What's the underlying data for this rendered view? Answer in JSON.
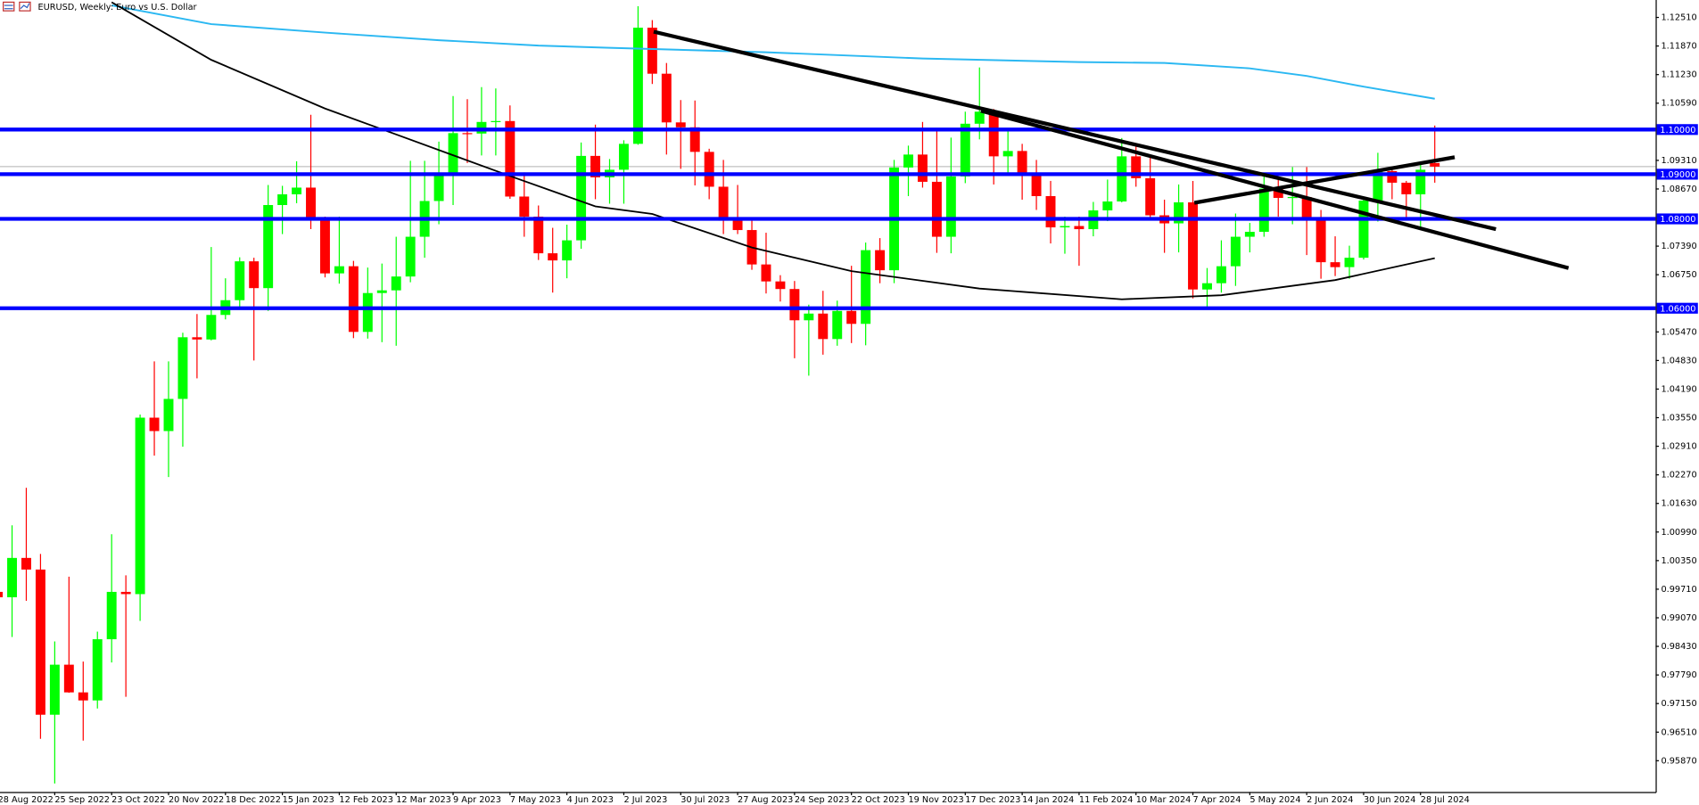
{
  "chart_data": {
    "type": "candlestick",
    "title": "EURUSD, Weekly: Euro vs U.S. Dollar",
    "categories": [
      "28 Aug 2022",
      null,
      null,
      null,
      "25 Sep 2022",
      null,
      null,
      null,
      "23 Oct 2022",
      null,
      null,
      null,
      "20 Nov 2022",
      null,
      null,
      null,
      "18 Dec 2022",
      null,
      null,
      null,
      "15 Jan 2023",
      null,
      null,
      null,
      "12 Feb 2023",
      null,
      null,
      null,
      "12 Mar 2023",
      null,
      null,
      null,
      "9 Apr 2023",
      null,
      null,
      null,
      "7 May 2023",
      null,
      null,
      null,
      "4 Jun 2023",
      null,
      null,
      null,
      "2 Jul 2023",
      null,
      null,
      null,
      "30 Jul 2023",
      null,
      null,
      null,
      "27 Aug 2023",
      null,
      null,
      null,
      "24 Sep 2023",
      null,
      null,
      null,
      "22 Oct 2023",
      null,
      null,
      null,
      "19 Nov 2023",
      null,
      null,
      null,
      "17 Dec 2023",
      null,
      null,
      null,
      "14 Jan 2024",
      null,
      null,
      null,
      "11 Feb 2024",
      null,
      null,
      null,
      "10 Mar 2024",
      null,
      null,
      null,
      "7 Apr 2024",
      null,
      null,
      null,
      "5 May 2024",
      null,
      null,
      null,
      "2 Jun 2024",
      null,
      null,
      null,
      "30 Jun 2024",
      null,
      null,
      null,
      "28 Jul 2024",
      null
    ],
    "open": [
      0.9965,
      0.9953,
      1.0041,
      1.0015,
      0.969,
      0.9802,
      0.974,
      0.9722,
      0.9859,
      0.9965,
      0.996,
      1.0355,
      1.0325,
      1.0397,
      1.0535,
      1.053,
      1.0585,
      1.0618,
      1.0705,
      1.0645,
      1.0831,
      1.0855,
      1.087,
      1.0797,
      1.0678,
      1.0694,
      1.0547,
      1.0634,
      1.064,
      1.0671,
      1.076,
      1.084,
      1.0901,
      1.0992,
      1.0991,
      1.1017,
      1.1019,
      1.085,
      1.0805,
      1.0723,
      1.0707,
      1.0752,
      1.0941,
      1.0893,
      1.091,
      1.0968,
      1.1228,
      1.1125,
      1.1016,
      1.1005,
      1.095,
      1.0872,
      1.0796,
      1.0775,
      1.0698,
      1.066,
      1.0643,
      1.0573,
      1.0588,
      1.0531,
      1.0594,
      1.0565,
      1.073,
      1.0685,
      1.0915,
      1.0944,
      1.0883,
      1.076,
      1.0895,
      1.1013,
      1.104,
      1.094,
      1.0952,
      1.0897,
      1.0851,
      1.0781,
      1.0784,
      1.0777,
      1.0819,
      1.0839,
      1.094,
      1.0891,
      1.0808,
      1.079,
      1.0837,
      1.0642,
      1.0656,
      1.0694,
      1.076,
      1.0771,
      1.0868,
      1.0847,
      1.0849,
      1.0801,
      1.0703,
      1.0692,
      1.0713,
      1.0841,
      1.0907,
      1.0881,
      1.0855,
      1.0925
    ],
    "high": [
      1.0079,
      1.0114,
      1.0198,
      1.005,
      0.9854,
      0.9999,
      0.9809,
      0.9876,
      1.0094,
      1.0002,
      1.0362,
      1.0481,
      1.0481,
      1.0545,
      1.0587,
      1.0737,
      1.0667,
      1.0714,
      1.0713,
      1.0876,
      1.0874,
      1.0929,
      1.1033,
      1.0805,
      1.0805,
      1.0706,
      1.0691,
      1.07,
      1.076,
      1.093,
      1.093,
      1.0973,
      1.1075,
      1.1068,
      1.1095,
      1.1092,
      1.1054,
      1.0904,
      1.083,
      1.078,
      1.0787,
      1.0971,
      1.1011,
      1.0934,
      1.0976,
      1.1276,
      1.1245,
      1.1149,
      1.1066,
      1.1065,
      1.0957,
      1.0932,
      1.0876,
      1.08,
      1.0769,
      1.0674,
      1.0661,
      1.0608,
      1.0639,
      1.0617,
      1.0695,
      1.0747,
      1.0757,
      1.0932,
      1.0964,
      1.1017,
      1.0996,
      1.0982,
      1.104,
      1.1139,
      1.1046,
      1.0998,
      1.0968,
      1.0932,
      1.0885,
      1.0805,
      1.0805,
      1.0838,
      1.0888,
      1.0981,
      1.0964,
      1.0942,
      1.0843,
      1.0877,
      1.0885,
      1.069,
      1.0752,
      1.0812,
      1.0791,
      1.0895,
      1.0895,
      1.0916,
      1.0916,
      1.082,
      1.0761,
      1.074,
      1.0844,
      1.0948,
      1.091,
      1.0885,
      1.0926,
      1.1009
    ],
    "low": [
      0.991,
      0.9864,
      0.9945,
      0.9636,
      0.9536,
      0.9739,
      0.9632,
      0.9704,
      0.9807,
      0.973,
      0.99,
      1.027,
      1.0222,
      1.029,
      1.0443,
      1.0528,
      1.0575,
      1.0601,
      1.0483,
      1.0594,
      1.0766,
      1.0835,
      1.0777,
      1.0669,
      1.0655,
      1.0533,
      1.0532,
      1.0524,
      1.0516,
      1.0658,
      1.0713,
      1.0788,
      1.0831,
      1.0925,
      1.0942,
      1.0942,
      1.0845,
      1.076,
      1.0708,
      1.0635,
      1.0667,
      1.0733,
      1.0844,
      1.0834,
      1.0834,
      1.0966,
      1.1102,
      1.0944,
      1.0912,
      1.0875,
      1.0844,
      1.0766,
      1.0766,
      1.0686,
      1.0633,
      1.0615,
      1.0488,
      1.0449,
      1.0496,
      1.0516,
      1.0522,
      1.0517,
      1.0656,
      1.0656,
      1.0851,
      1.087,
      1.0724,
      1.0723,
      1.088,
      1.0978,
      1.0877,
      1.0902,
      1.0843,
      1.082,
      1.0745,
      1.0722,
      1.0695,
      1.0761,
      1.0795,
      1.0837,
      1.0872,
      1.0802,
      1.0724,
      1.0725,
      1.0622,
      1.0601,
      1.0635,
      1.065,
      1.0725,
      1.076,
      1.0805,
      1.0788,
      1.0719,
      1.0666,
      1.0672,
      1.0666,
      1.0709,
      1.0794,
      1.0844,
      1.08,
      1.0777,
      1.0881
    ],
    "close": [
      0.9953,
      1.0041,
      1.0015,
      0.969,
      0.9802,
      0.974,
      0.9722,
      0.9859,
      0.9965,
      0.996,
      1.0355,
      1.0325,
      1.0397,
      1.0535,
      1.053,
      1.0585,
      1.0618,
      1.0705,
      1.0645,
      1.0831,
      1.0855,
      1.087,
      1.0797,
      1.0678,
      1.0694,
      1.0547,
      1.0634,
      1.064,
      1.0671,
      1.076,
      1.084,
      1.0901,
      1.0992,
      1.0991,
      1.1017,
      1.1019,
      1.085,
      1.0805,
      1.0723,
      1.0707,
      1.0752,
      1.0941,
      1.0893,
      1.091,
      1.0968,
      1.1228,
      1.1125,
      1.1016,
      1.1005,
      1.095,
      1.0872,
      1.0796,
      1.0775,
      1.0698,
      1.066,
      1.0643,
      1.0573,
      1.0588,
      1.0531,
      1.0594,
      1.0565,
      1.073,
      1.0685,
      1.0915,
      1.0944,
      1.0883,
      1.076,
      1.0895,
      1.1013,
      1.104,
      1.094,
      1.0952,
      1.0897,
      1.0851,
      1.0781,
      1.0784,
      1.0777,
      1.0819,
      1.0839,
      1.094,
      1.0891,
      1.0808,
      1.079,
      1.0837,
      1.0642,
      1.0656,
      1.0694,
      1.076,
      1.0771,
      1.0868,
      1.0847,
      1.0849,
      1.0801,
      1.0703,
      1.0692,
      1.0713,
      1.0841,
      1.0907,
      1.0881,
      1.0855,
      1.091,
      1.0917
    ],
    "up_color": "#00ff00",
    "down_color": "#ff0000",
    "ylim": [
      0.9517,
      1.129
    ],
    "yticks": [
      {
        "value": 1.1251,
        "label": "1.12510"
      },
      {
        "value": 1.1187,
        "label": "1.11870"
      },
      {
        "value": 1.1123,
        "label": "1.11230"
      },
      {
        "value": 1.1059,
        "label": "1.10590"
      },
      {
        "value": 1.0931,
        "label": "1.09310"
      },
      {
        "value": 1.0867,
        "label": "1.08670"
      },
      {
        "value": 1.0739,
        "label": "1.07390"
      },
      {
        "value": 1.0675,
        "label": "1.06750"
      },
      {
        "value": 1.0547,
        "label": "1.05470"
      },
      {
        "value": 1.0483,
        "label": "1.04830"
      },
      {
        "value": 1.0419,
        "label": "1.04190"
      },
      {
        "value": 1.0355,
        "label": "1.03550"
      },
      {
        "value": 1.0291,
        "label": "1.02910"
      },
      {
        "value": 1.0227,
        "label": "1.02270"
      },
      {
        "value": 1.0163,
        "label": "1.01630"
      },
      {
        "value": 1.0099,
        "label": "1.00990"
      },
      {
        "value": 1.0035,
        "label": "1.00350"
      },
      {
        "value": 0.9971,
        "label": "0.99710"
      },
      {
        "value": 0.9907,
        "label": "0.99070"
      },
      {
        "value": 0.9843,
        "label": "0.98430"
      },
      {
        "value": 0.9779,
        "label": "0.97790"
      },
      {
        "value": 0.9715,
        "label": "0.97150"
      },
      {
        "value": 0.9651,
        "label": "0.96510"
      },
      {
        "value": 0.9587,
        "label": "0.95870"
      }
    ],
    "levels": [
      {
        "value": 1.1,
        "label": "1.10000"
      },
      {
        "value": 1.09,
        "label": "1.09000"
      },
      {
        "value": 1.08,
        "label": "1.08000"
      },
      {
        "value": 1.06,
        "label": "1.06000"
      }
    ],
    "level_color": "#0000ff",
    "lines": [
      {
        "color": "#2bb8f2",
        "x": [
          8,
          15,
          23,
          31,
          38,
          43,
          54,
          65,
          76,
          82,
          88,
          92,
          96,
          101
        ],
        "values": [
          1.1278,
          1.1236,
          1.1217,
          1.12,
          1.1188,
          1.1183,
          1.1173,
          1.1159,
          1.1151,
          1.1149,
          1.1137,
          1.112,
          1.1096,
          1.1069
        ]
      },
      {
        "color": "#000000",
        "x": [
          8,
          15,
          23,
          28,
          36,
          42,
          46,
          53,
          60,
          69,
          79,
          86,
          94,
          101
        ],
        "values": [
          1.1285,
          1.1156,
          1.1047,
          1.0989,
          1.0896,
          1.0828,
          1.0811,
          1.0736,
          1.0683,
          1.0644,
          1.062,
          1.0629,
          1.0663,
          1.0712
        ]
      }
    ],
    "trendlines": [
      {
        "x": [
          46.1,
          105.3
        ],
        "values": [
          1.1219,
          1.0777
        ]
      },
      {
        "x": [
          69.1,
          110.4
        ],
        "values": [
          1.1042,
          1.069
        ]
      },
      {
        "x": [
          84.1,
          102.4
        ],
        "values": [
          1.0836,
          1.0938
        ]
      }
    ],
    "trendline_color": "#000000"
  }
}
